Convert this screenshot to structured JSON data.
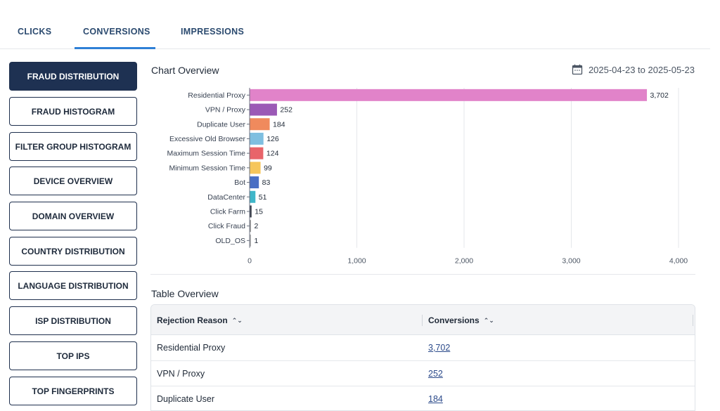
{
  "tabs": [
    {
      "label": "CLICKS"
    },
    {
      "label": "CONVERSIONS"
    },
    {
      "label": "IMPRESSIONS"
    }
  ],
  "sidebar": {
    "items": [
      {
        "label": "FRAUD DISTRIBUTION"
      },
      {
        "label": "FRAUD HISTOGRAM"
      },
      {
        "label": "FILTER GROUP HISTOGRAM"
      },
      {
        "label": "DEVICE OVERVIEW"
      },
      {
        "label": "DOMAIN OVERVIEW"
      },
      {
        "label": "COUNTRY DISTRIBUTION"
      },
      {
        "label": "LANGUAGE DISTRIBUTION"
      },
      {
        "label": "ISP DISTRIBUTION"
      },
      {
        "label": "TOP IPS"
      },
      {
        "label": "TOP FINGERPRINTS"
      }
    ]
  },
  "chart_section": {
    "title": "Chart Overview",
    "date_range": "2025-04-23 to 2025-05-23",
    "date_icon": "calendar-icon"
  },
  "chart_data": {
    "type": "bar",
    "orientation": "horizontal",
    "categories": [
      "Residential Proxy",
      "VPN / Proxy",
      "Duplicate User",
      "Excessive Old Browser",
      "Maximum Session Time",
      "Minimum Session Time",
      "Bot",
      "DataCenter",
      "Click Farm",
      "Click Fraud",
      "OLD_OS"
    ],
    "values": [
      3702,
      252,
      184,
      126,
      124,
      99,
      83,
      51,
      15,
      2,
      1
    ],
    "value_labels": [
      "3,702",
      "252",
      "184",
      "126",
      "124",
      "99",
      "83",
      "51",
      "15",
      "2",
      "1"
    ],
    "colors": [
      "#e183c9",
      "#9b59b6",
      "#f08a5d",
      "#7fbfe0",
      "#e8646a",
      "#f6c65b",
      "#4a6fc4",
      "#3fb6c9",
      "#3a3f4b",
      "#9e9e9e",
      "#b0b0b0"
    ],
    "xticks": [
      0,
      1000,
      2000,
      3000,
      4000
    ],
    "xtick_labels": [
      "0",
      "1,000",
      "2,000",
      "3,000",
      "4,000"
    ],
    "xlim": [
      0,
      4000
    ],
    "grid": true
  },
  "table_section": {
    "title": "Table Overview",
    "columns": [
      "Rejection Reason",
      "Conversions"
    ],
    "sort_icon": "sort-icon",
    "rows": [
      {
        "reason": "Residential Proxy",
        "conversions": "3,702"
      },
      {
        "reason": "VPN / Proxy",
        "conversions": "252"
      },
      {
        "reason": "Duplicate User",
        "conversions": "184"
      }
    ]
  }
}
